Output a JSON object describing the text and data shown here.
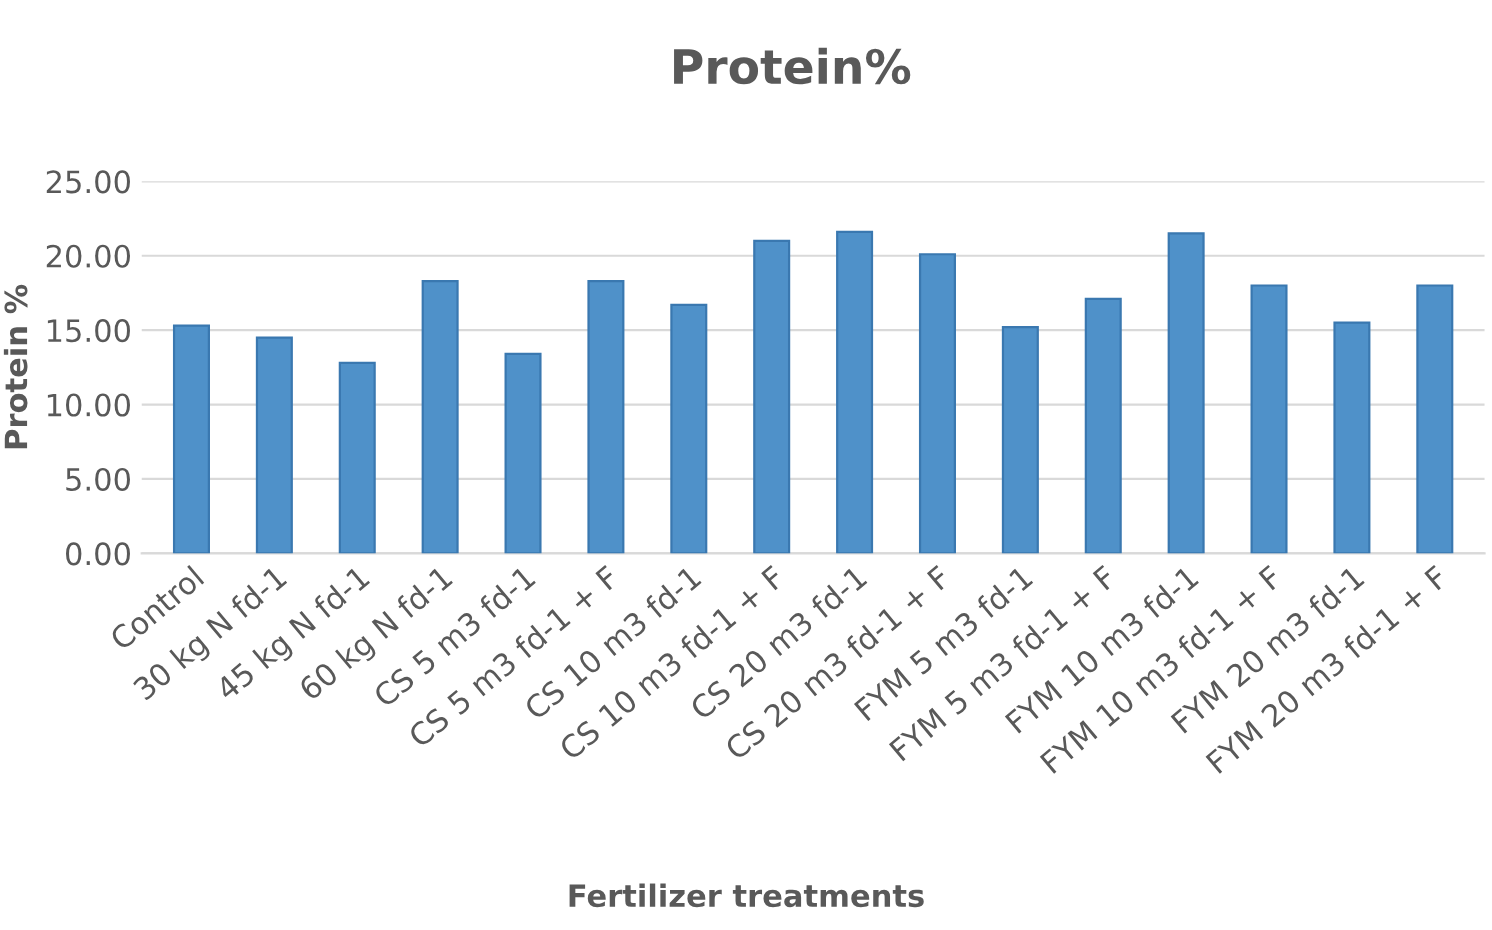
{
  "chart_data": {
    "type": "bar",
    "title": "Protein%",
    "xlabel": "Fertilizer treatments",
    "ylabel": "Protein %",
    "categories": [
      "Control",
      "30 kg N fd-1",
      "45 kg N fd-1",
      "60 kg N fd-1",
      "CS 5 m3 fd-1",
      "CS 5 m3 fd-1 + F",
      "CS 10 m3 fd-1",
      "CS 10 m3 fd-1 + F",
      "CS 20 m3 fd-1",
      "CS 20 m3 fd-1 + F",
      "FYM 5 m3 fd-1",
      "FYM 5 m3 fd-1 + F",
      "FYM 10 m3 fd-1",
      "FYM 10 m3 fd-1 + F",
      "FYM 20 m3 fd-1",
      "FYM 20 m3 fd-1 + F"
    ],
    "values": [
      15.3,
      14.5,
      12.8,
      18.3,
      13.4,
      18.3,
      16.7,
      21.0,
      21.6,
      20.1,
      15.2,
      17.1,
      21.5,
      18.0,
      15.5,
      18.0
    ],
    "color": "#4f91c9",
    "ylim": [
      0,
      25
    ],
    "yticks": [
      {
        "value": 0,
        "label": "0.00"
      },
      {
        "value": 5,
        "label": "5.00"
      },
      {
        "value": 10,
        "label": "10.00"
      },
      {
        "value": 15,
        "label": "15.00"
      },
      {
        "value": 20,
        "label": "20.00"
      },
      {
        "value": 25,
        "label": "25.00"
      }
    ],
    "grid": "y"
  }
}
